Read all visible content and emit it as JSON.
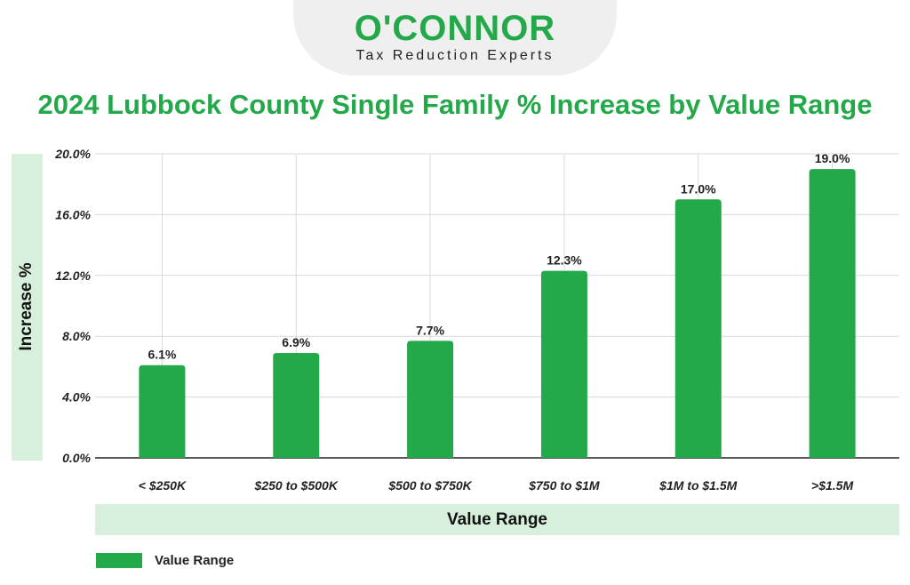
{
  "logo": {
    "name": "O'CONNOR",
    "tagline": "Tax Reduction Experts"
  },
  "colors": {
    "accent": "#23a84a",
    "band": "#d7f0dc"
  },
  "chart_data": {
    "type": "bar",
    "title": "2024 Lubbock County Single Family % Increase by Value Range",
    "xlabel": "Value Range",
    "ylabel": "Increase %",
    "categories": [
      "< $250K",
      "$250 to $500K",
      "$500 to $750K",
      "$750 to $1M",
      "$1M to $1.5M",
      ">$1.5M"
    ],
    "series": [
      {
        "name": "Value Range",
        "values": [
          6.1,
          6.9,
          7.7,
          12.3,
          17.0,
          19.0
        ],
        "labels": [
          "6.1%",
          "6.9%",
          "7.7%",
          "12.3%",
          "17.0%",
          "19.0%"
        ]
      }
    ],
    "ylim": [
      0,
      20
    ],
    "yticks": [
      0,
      4,
      8,
      12,
      16,
      20
    ],
    "ytick_labels": [
      "0.0%",
      "4.0%",
      "8.0%",
      "12.0%",
      "16.0%",
      "20.0%"
    ],
    "grid": true,
    "legend_position": "bottom-left"
  }
}
